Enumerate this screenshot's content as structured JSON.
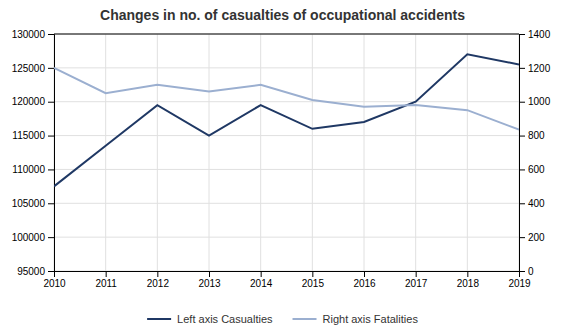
{
  "chart_data": {
    "type": "line",
    "title": "Changes in no. of casualties of occupational accidents",
    "x": [
      2010,
      2011,
      2012,
      2013,
      2014,
      2015,
      2016,
      2017,
      2018,
      2019
    ],
    "xlim": [
      2010,
      2019
    ],
    "xticks": [
      2010,
      2011,
      2012,
      2013,
      2014,
      2015,
      2016,
      2017,
      2018,
      2019
    ],
    "ylim": [
      95000,
      130000
    ],
    "yticks": [
      95000,
      100000,
      105000,
      110000,
      115000,
      120000,
      125000,
      130000
    ],
    "y2lim": [
      0,
      1400
    ],
    "y2ticks": [
      0,
      200,
      400,
      600,
      800,
      1000,
      1200,
      1400
    ],
    "grid": true,
    "legend": "bottom",
    "series": [
      {
        "name": "Left axis Casualties",
        "color": "#1f3864",
        "values": [
          107500,
          113500,
          119500,
          115000,
          119500,
          116000,
          117000,
          120000,
          127000,
          125500
        ]
      },
      {
        "name": "Right axis Fatalities",
        "color": "#9BAFD0",
        "axis": "y2",
        "values": [
          1200,
          1050,
          1100,
          1060,
          1100,
          1010,
          970,
          980,
          950,
          835
        ]
      }
    ]
  }
}
